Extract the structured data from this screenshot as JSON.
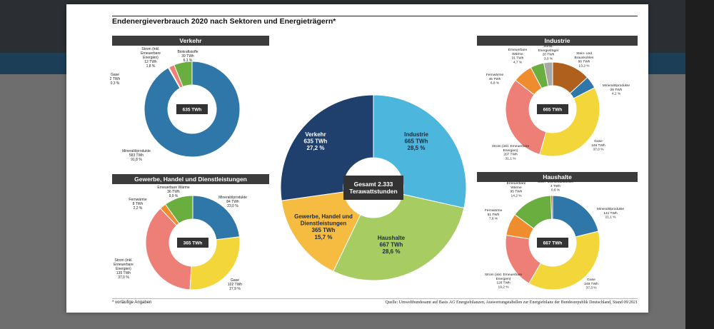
{
  "title": "Endenergieverbrauch 2020 nach Sektoren und Energieträgern*",
  "footnote": "* vorläufige Angaben",
  "source": "Quelle: Umweltbundesamt auf Basis AG Energiebilanzen, Auswertungstabellen zur Energiebilanz der Bundesrepublik Deutschland, Stand 09/2021",
  "colors": {
    "blue": "#2f77a8",
    "red": "#ee7f76",
    "green": "#6aae3f",
    "orange": "#ef8d2e",
    "gray": "#a8a8a8",
    "brown": "#b0601d",
    "yellow": "#f3d63a"
  },
  "chart_data": [
    {
      "type": "donut",
      "title": "Gesamt 2.333 Terawattstunden",
      "center_label": [
        "Gesamt 2.333",
        "Terawattstunden"
      ],
      "segments": [
        {
          "label": [
            "Industrie",
            "665 TWh",
            "28,5 %"
          ],
          "value": 665,
          "color": "#4db6dc"
        },
        {
          "label": [
            "Haushalte",
            "667 TWh",
            "28,6 %"
          ],
          "value": 667,
          "color": "#a7cc62"
        },
        {
          "label": [
            "Gewerbe, Handel und",
            "Dienstleistungen",
            "365 TWh",
            "15,7 %"
          ],
          "value": 365,
          "color": "#f5bc41"
        },
        {
          "label": [
            "Verkehr",
            "635 TWh",
            "27,2 %"
          ],
          "value": 635,
          "color": "#1f3f6d"
        }
      ]
    },
    {
      "type": "donut",
      "title": "Verkehr",
      "center_label": [
        "635 TWh"
      ],
      "segments": [
        {
          "label": [
            "Mineralölprodukte",
            "583 TWh",
            "91,8 %"
          ],
          "value": 583,
          "color": "#2f77a8"
        },
        {
          "label": [
            "Gase",
            "2 TWh",
            "0,3 %"
          ],
          "value": 2,
          "color": "#a8a8a8"
        },
        {
          "label": [
            "Strom (inkl.",
            "Erneuerbare",
            "Energien)",
            "12 TWh",
            "1,8 %"
          ],
          "value": 12,
          "color": "#ee7f76"
        },
        {
          "label": [
            "Biokraftstoffe",
            "39 TWh",
            "6,1 %"
          ],
          "value": 39,
          "color": "#6aae3f"
        }
      ]
    },
    {
      "type": "donut",
      "title": "Gewerbe, Handel und Dienstleistungen",
      "center_label": [
        "365 TWh"
      ],
      "segments": [
        {
          "label": [
            "Mineralölprodukte",
            "84 TWh",
            "23,0 %"
          ],
          "value": 84,
          "color": "#2f77a8"
        },
        {
          "label": [
            "Gase",
            "102 TWh",
            "27,9 %"
          ],
          "value": 102,
          "color": "#f3d63a"
        },
        {
          "label": [
            "Strom (inkl.",
            "Erneuerbare",
            "Energien)",
            "135 TWh",
            "37,0 %"
          ],
          "value": 135,
          "color": "#ee7f76"
        },
        {
          "label": [
            "Fernwärme",
            "8 TWh",
            "2,2 %"
          ],
          "value": 8,
          "color": "#ef8d2e"
        },
        {
          "label": [
            "Erneuerbare Wärme",
            "36 TWh",
            "9,9 %"
          ],
          "value": 36,
          "color": "#6aae3f"
        }
      ]
    },
    {
      "type": "donut",
      "title": "Industrie",
      "center_label": [
        "665 TWh"
      ],
      "segments": [
        {
          "label": [
            "Stein- und",
            "Braunkohlen",
            "88 TWh",
            "13,2 %"
          ],
          "value": 88,
          "color": "#b0601d"
        },
        {
          "label": [
            "Mineralölprodukte",
            "28 TWh",
            "4,2 %"
          ],
          "value": 28,
          "color": "#2f77a8"
        },
        {
          "label": [
            "Gase",
            "246 TWh",
            "37,0 %"
          ],
          "value": 246,
          "color": "#f3d63a"
        },
        {
          "label": [
            "Strom (inkl. Erneuerbare",
            "Energien)",
            "207 TWh",
            "31,1 %"
          ],
          "value": 207,
          "color": "#ee7f76"
        },
        {
          "label": [
            "Fernwärme",
            "45 TWh",
            "6,8 %"
          ],
          "value": 45,
          "color": "#ef8d2e"
        },
        {
          "label": [
            "Erneuerbare",
            "Wärme",
            "31 TWh",
            "4,7 %"
          ],
          "value": 31,
          "color": "#6aae3f"
        },
        {
          "label": [
            "Sonst.",
            "Energieträger",
            "20 TWh",
            "3,0 %"
          ],
          "value": 20,
          "color": "#a8a8a8"
        }
      ]
    },
    {
      "type": "donut",
      "title": "Haushalte",
      "center_label": [
        "667 TWh"
      ],
      "segments": [
        {
          "label": [
            "Mineralölprodukte",
            "141 TWh",
            "21,1 %"
          ],
          "value": 141,
          "color": "#2f77a8"
        },
        {
          "label": [
            "Gase",
            "249 TWh",
            "37,3 %"
          ],
          "value": 249,
          "color": "#f3d63a"
        },
        {
          "label": [
            "Strom (inkl. Erneuerbare",
            "Energien)",
            "128 TWh",
            "19,2 %"
          ],
          "value": 128,
          "color": "#ee7f76"
        },
        {
          "label": [
            "Fernwärme",
            "51 TWh",
            "7,6 %"
          ],
          "value": 51,
          "color": "#ef8d2e"
        },
        {
          "label": [
            "Erneuerbare",
            "Wärme",
            "95 TWh",
            "14,2 %"
          ],
          "value": 95,
          "color": "#6aae3f"
        },
        {
          "label": [
            "Stein- und Braunkohlen",
            "4 TWh",
            "0,6 %"
          ],
          "value": 4,
          "color": "#b0601d"
        }
      ]
    }
  ]
}
